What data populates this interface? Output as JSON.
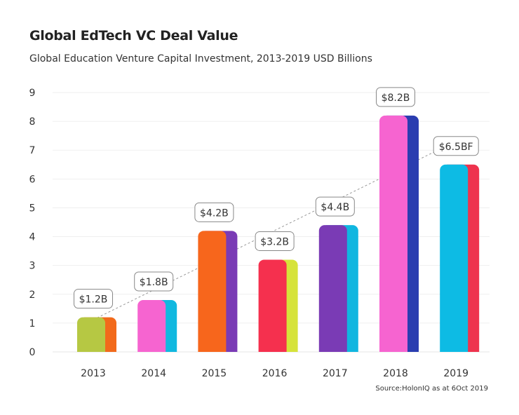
{
  "chart_data": {
    "type": "bar",
    "title": "Global EdTech VC Deal Value",
    "subtitle": "Global Education Venture Capital Investment, 2013-2019 USD Billions",
    "source": "Source:HolonIQ as at 6Oct 2019",
    "categories": [
      "2013",
      "2014",
      "2015",
      "2016",
      "2017",
      "2018",
      "2019"
    ],
    "values": [
      1.2,
      1.8,
      4.2,
      3.2,
      4.4,
      8.2,
      6.5
    ],
    "data_labels": [
      "$1.2B",
      "$1.8B",
      "$4.2B",
      "$3.2B",
      "$4.4B",
      "$8.2B",
      "$6.5BF"
    ],
    "colors": [
      "#b6c843",
      "#f664d0",
      "#f7661c",
      "#f5304e",
      "#7a3bb5",
      "#f664d0",
      "#0dbbe4"
    ],
    "shadow_colors": [
      "#f26a1b",
      "#10b8e0",
      "#7a3bb5",
      "#d6e33a",
      "#10b6e0",
      "#2a3db0",
      "#ee334e"
    ],
    "ylim": [
      0,
      9
    ],
    "yticks": [
      0,
      1,
      2,
      3,
      4,
      5,
      6,
      7,
      8,
      9
    ],
    "xlabel": "",
    "ylabel": "",
    "grid": true,
    "trendline": true
  }
}
